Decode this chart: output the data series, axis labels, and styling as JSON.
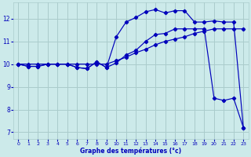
{
  "xlabel": "Graphe des températures (°c)",
  "background_color": "#cceaea",
  "grid_color": "#aacccc",
  "line_color": "#0000bb",
  "xlim": [
    -0.5,
    23.5
  ],
  "ylim": [
    6.7,
    12.7
  ],
  "yticks": [
    7,
    8,
    9,
    10,
    11,
    12
  ],
  "xticks": [
    0,
    1,
    2,
    3,
    4,
    5,
    6,
    7,
    8,
    9,
    10,
    11,
    12,
    13,
    14,
    15,
    16,
    17,
    18,
    19,
    20,
    21,
    22,
    23
  ],
  "line1_x": [
    0,
    1,
    2,
    3,
    4,
    5,
    6,
    7,
    8,
    9,
    10,
    11,
    12,
    13,
    14,
    15,
    16,
    17,
    18,
    19,
    20,
    21,
    22,
    23
  ],
  "line1_y": [
    10.0,
    9.9,
    9.9,
    10.0,
    10.0,
    10.0,
    9.85,
    9.8,
    10.1,
    9.85,
    11.2,
    11.85,
    12.05,
    12.3,
    12.4,
    12.25,
    12.35,
    12.35,
    11.85,
    11.85,
    11.9,
    11.85,
    11.85,
    7.2
  ],
  "line2_x": [
    0,
    1,
    2,
    3,
    4,
    5,
    6,
    7,
    8,
    9,
    10,
    11,
    12,
    13,
    14,
    15,
    16,
    17,
    18,
    19,
    20,
    21,
    22,
    23
  ],
  "line2_y": [
    10.0,
    10.0,
    10.0,
    10.0,
    10.0,
    10.0,
    10.0,
    10.0,
    10.0,
    10.0,
    10.15,
    10.3,
    10.5,
    10.65,
    10.85,
    11.0,
    11.1,
    11.2,
    11.35,
    11.45,
    11.55,
    11.55,
    11.55,
    11.55
  ],
  "line3_x": [
    0,
    1,
    2,
    3,
    4,
    5,
    6,
    7,
    8,
    9,
    10,
    11,
    12,
    13,
    14,
    15,
    16,
    17,
    18,
    19,
    20,
    21,
    22,
    23
  ],
  "line3_y": [
    10.0,
    9.9,
    9.9,
    10.0,
    10.0,
    10.0,
    9.85,
    9.8,
    10.1,
    9.85,
    10.05,
    10.4,
    10.6,
    11.0,
    11.3,
    11.35,
    11.55,
    11.55,
    11.55,
    11.55,
    8.5,
    8.4,
    8.5,
    7.2
  ]
}
